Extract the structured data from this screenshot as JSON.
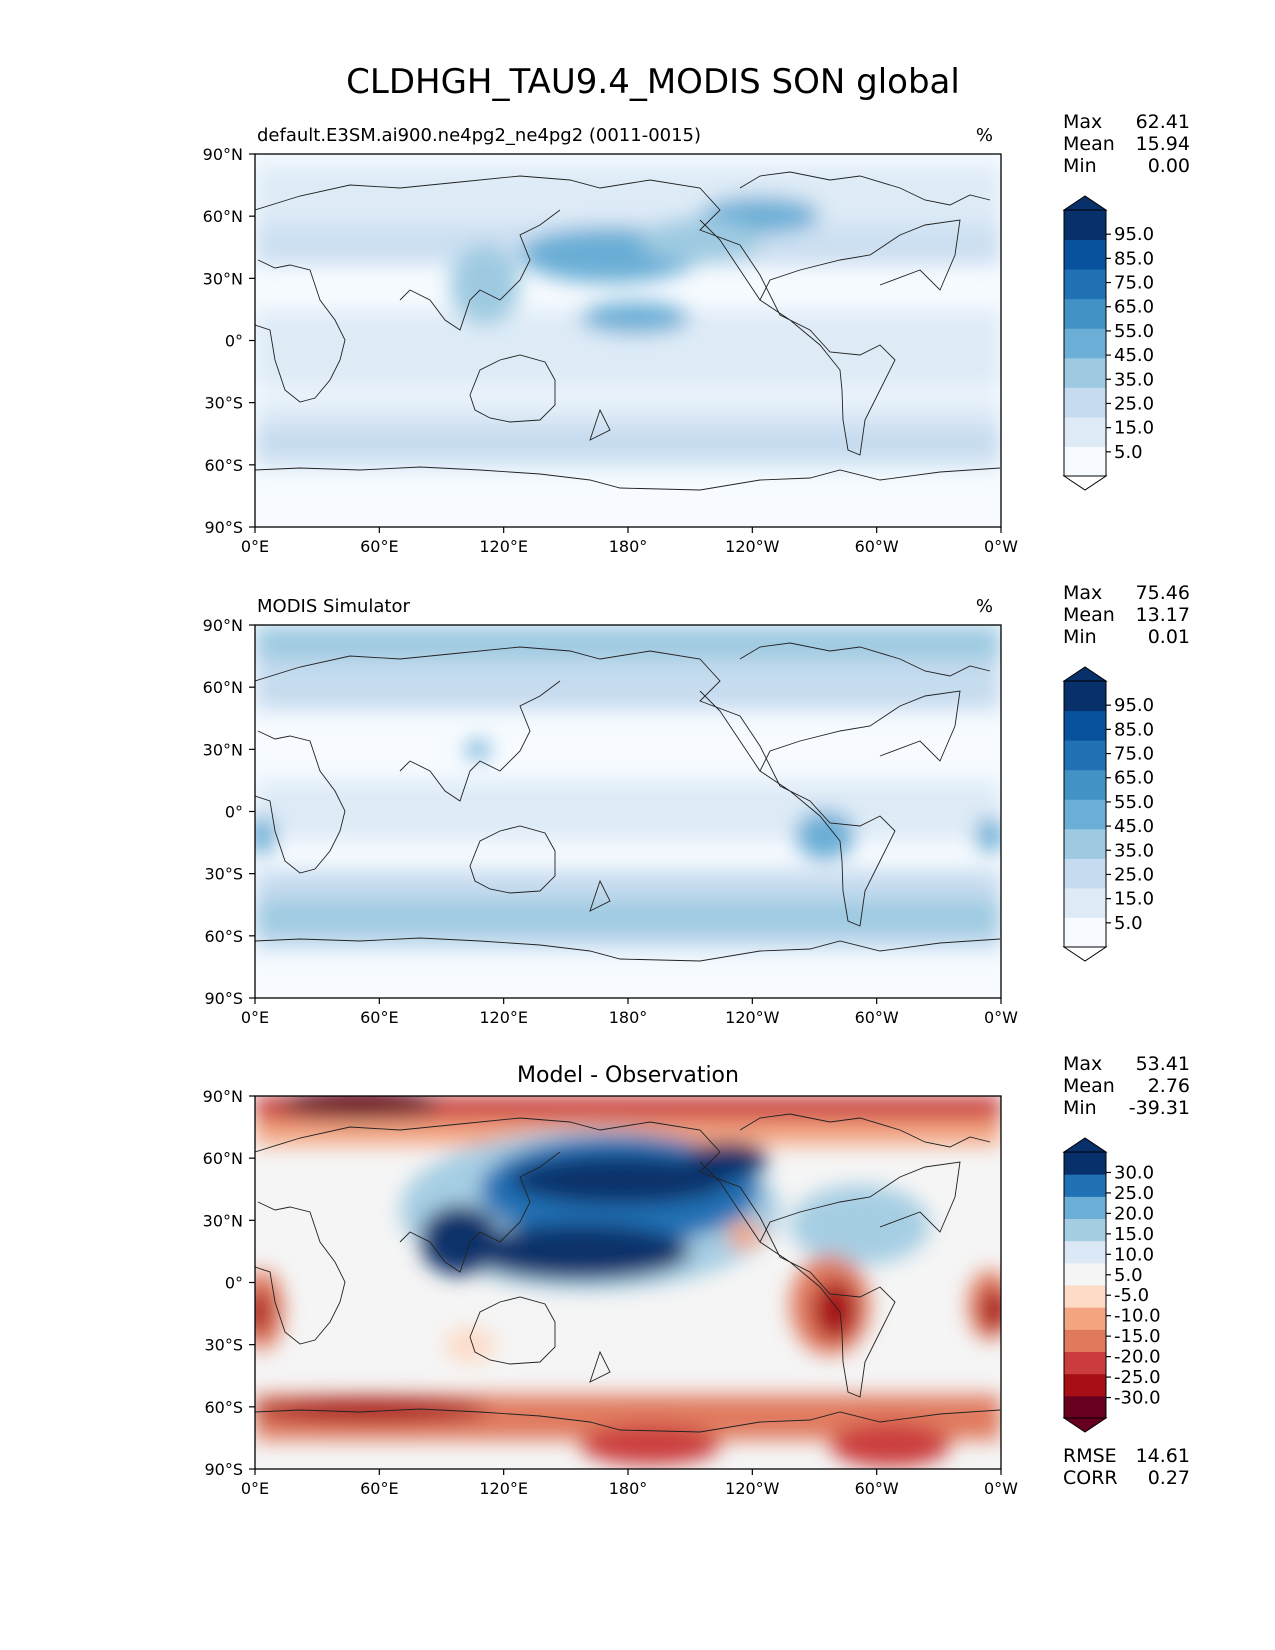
{
  "figure_title": "CLDHGH_TAU9.4_MODIS SON global",
  "colors": {
    "seq": [
      "#f7fbff",
      "#deebf7",
      "#c6dbef",
      "#9ecae1",
      "#6baed6",
      "#4292c6",
      "#2171b5",
      "#08519c",
      "#08306b"
    ],
    "div": [
      "#67001f",
      "#a50f15",
      "#cb3d3d",
      "#e07a5f",
      "#f4a582",
      "#fddbc7",
      "#f5f5f5",
      "#dbe9f6",
      "#a6cee3",
      "#6baed6",
      "#2171b5",
      "#08306b"
    ],
    "coast": "#222222"
  },
  "panels": [
    {
      "title_left": "default.E3SM.ai900.ne4pg2_ne4pg2 (0011-0015)",
      "title_center": "",
      "units": "%",
      "stats": [
        {
          "label": "Max",
          "value": "62.41"
        },
        {
          "label": "Mean",
          "value": "15.94"
        },
        {
          "label": "Min",
          "value": "0.00"
        }
      ],
      "colorbar_ticks": [
        "95.0",
        "85.0",
        "75.0",
        "65.0",
        "55.0",
        "45.0",
        "35.0",
        "25.0",
        "15.0",
        "5.0"
      ],
      "extra_stats": []
    },
    {
      "title_left": "MODIS Simulator",
      "title_center": "",
      "units": "%",
      "stats": [
        {
          "label": "Max",
          "value": "75.46"
        },
        {
          "label": "Mean",
          "value": "13.17"
        },
        {
          "label": "Min",
          "value": "0.01"
        }
      ],
      "colorbar_ticks": [
        "95.0",
        "85.0",
        "75.0",
        "65.0",
        "55.0",
        "45.0",
        "35.0",
        "25.0",
        "15.0",
        "5.0"
      ],
      "extra_stats": []
    },
    {
      "title_left": "",
      "title_center": "Model - Observation",
      "units": "",
      "stats": [
        {
          "label": "Max",
          "value": "53.41"
        },
        {
          "label": "Mean",
          "value": "2.76"
        },
        {
          "label": "Min",
          "value": "-39.31"
        }
      ],
      "colorbar_ticks": [
        "30.0",
        "25.0",
        "20.0",
        "15.0",
        "10.0",
        "5.0",
        "-5.0",
        "-10.0",
        "-15.0",
        "-20.0",
        "-25.0",
        "-30.0"
      ],
      "extra_stats": [
        {
          "label": "RMSE",
          "value": "14.61"
        },
        {
          "label": "CORR",
          "value": "0.27"
        }
      ]
    }
  ],
  "chart_data": [
    {
      "type": "heatmap",
      "title": "default.E3SM.ai900.ne4pg2_ne4pg2 (0011-0015)",
      "units": "%",
      "x_ticks": [
        "0°E",
        "60°E",
        "120°E",
        "180°",
        "120°W",
        "60°W",
        "0°W"
      ],
      "y_ticks": [
        "90°N",
        "60°N",
        "30°N",
        "0°",
        "30°S",
        "60°S",
        "90°S"
      ],
      "xlim": [
        0,
        360
      ],
      "ylim": [
        -90,
        90
      ],
      "levels": [
        5,
        15,
        25,
        35,
        45,
        55,
        65,
        75,
        85,
        95
      ],
      "max": 62.41,
      "mean": 15.94,
      "min": 0.0,
      "features": [
        {
          "lon": 170,
          "lat": 47,
          "value": 50
        },
        {
          "lon": 205,
          "lat": 55,
          "value": 45
        },
        {
          "lon": 240,
          "lat": 60,
          "value": 50
        },
        {
          "lon": 110,
          "lat": 25,
          "value": 40
        },
        {
          "lon": 187,
          "lat": 8,
          "value": 40
        },
        {
          "lon": 15,
          "lat": -48,
          "value": 30
        },
        {
          "lon": 180,
          "lat": -50,
          "value": 25
        }
      ]
    },
    {
      "type": "heatmap",
      "title": "MODIS Simulator",
      "units": "%",
      "x_ticks": [
        "0°E",
        "60°E",
        "120°E",
        "180°",
        "120°W",
        "60°W",
        "0°W"
      ],
      "y_ticks": [
        "90°N",
        "60°N",
        "30°N",
        "0°",
        "30°S",
        "60°S",
        "90°S"
      ],
      "xlim": [
        0,
        360
      ],
      "ylim": [
        -90,
        90
      ],
      "levels": [
        5,
        15,
        25,
        35,
        45,
        55,
        65,
        75,
        85,
        95
      ],
      "max": 75.46,
      "mean": 13.17,
      "min": 0.01,
      "features": [
        {
          "lon": 180,
          "lat": 80,
          "value": 40
        },
        {
          "lon": 30,
          "lat": -50,
          "value": 35
        },
        {
          "lon": 285,
          "lat": -12,
          "value": 35
        },
        {
          "lon": 100,
          "lat": 30,
          "value": 30
        },
        {
          "lon": 5,
          "lat": -10,
          "value": 30
        }
      ]
    },
    {
      "type": "heatmap",
      "title": "Model - Observation",
      "units": "",
      "x_ticks": [
        "0°E",
        "60°E",
        "120°E",
        "180°",
        "120°W",
        "60°W",
        "0°W"
      ],
      "y_ticks": [
        "90°N",
        "60°N",
        "30°N",
        "0°",
        "30°S",
        "60°S",
        "90°S"
      ],
      "xlim": [
        0,
        360
      ],
      "ylim": [
        -90,
        90
      ],
      "levels": [
        -30,
        -25,
        -20,
        -15,
        -10,
        -5,
        5,
        10,
        15,
        20,
        25,
        30
      ],
      "max": 53.41,
      "mean": 2.76,
      "min": -39.31,
      "rmse": 14.61,
      "corr": 0.27,
      "features": [
        {
          "lon": 165,
          "lat": 42,
          "value": 40
        },
        {
          "lon": 232,
          "lat": 60,
          "value": 35
        },
        {
          "lon": 150,
          "lat": 13,
          "value": 45
        },
        {
          "lon": 100,
          "lat": 20,
          "value": 35
        },
        {
          "lon": 50,
          "lat": 80,
          "value": -30
        },
        {
          "lon": 280,
          "lat": -15,
          "value": -30
        },
        {
          "lon": 5,
          "lat": -13,
          "value": -30
        },
        {
          "lon": 355,
          "lat": -13,
          "value": -30
        },
        {
          "lon": 80,
          "lat": -60,
          "value": -25
        },
        {
          "lon": 185,
          "lat": -75,
          "value": -20
        },
        {
          "lon": 300,
          "lat": -72,
          "value": -20
        }
      ]
    }
  ]
}
